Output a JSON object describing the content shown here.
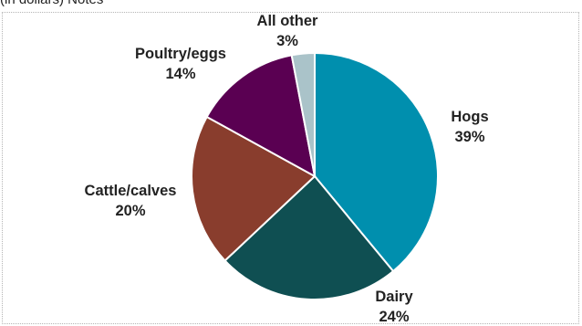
{
  "header": {
    "subtitle": "(in dollars) Notes"
  },
  "chart_data": {
    "type": "pie",
    "title": "",
    "slices": [
      {
        "label": "Hogs",
        "value": 39,
        "display": "39%",
        "color": "#008fae"
      },
      {
        "label": "Dairy",
        "value": 24,
        "display": "24%",
        "color": "#0f4f52"
      },
      {
        "label": "Cattle/calves",
        "value": 20,
        "display": "20%",
        "color": "#893d2d"
      },
      {
        "label": "Poultry/eggs",
        "value": 14,
        "display": "14%",
        "color": "#5a0052"
      },
      {
        "label": "All other",
        "value": 3,
        "display": "3%",
        "color": "#aac3c9"
      }
    ],
    "start_angle": "12 o'clock, clockwise"
  }
}
